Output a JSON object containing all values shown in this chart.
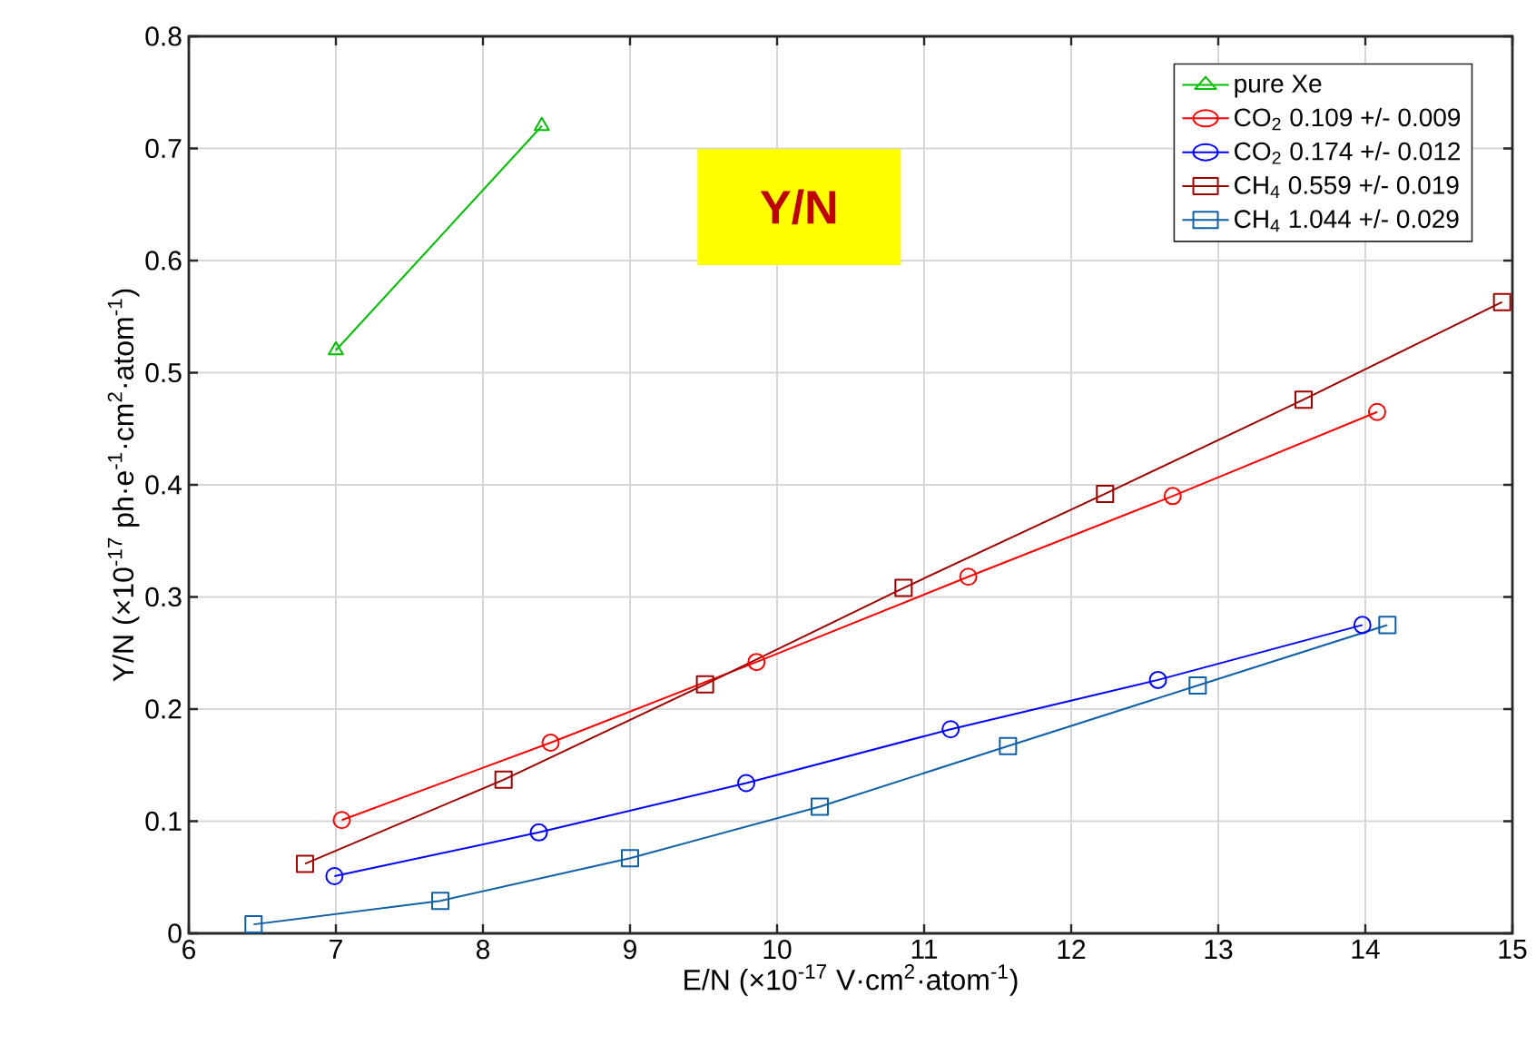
{
  "chart_data": {
    "type": "line",
    "xlabel": "E/N (×10$^{-17}$ V·cm$^{2}$·atom$^{-1}$)",
    "ylabel": "Y/N (×10$^{-17}$ ph·e$^{-1}$·cm$^{2}$·atom$^{-1}$)",
    "annotations": [
      "Y/N"
    ],
    "xlim": [
      6,
      15
    ],
    "xticks": [
      6,
      7,
      8,
      9,
      10,
      11,
      12,
      13,
      14,
      15
    ],
    "ylim": [
      0,
      0.8
    ],
    "yticks": [
      0,
      0.1,
      0.2,
      0.3,
      0.4,
      0.5,
      0.6,
      0.7,
      0.8
    ],
    "grid": true,
    "legend": "top right",
    "line_style": "solid",
    "series": [
      {
        "name": "pure Xe",
        "color": "#00c000",
        "marker": "triangle",
        "x": [
          7.0,
          8.4
        ],
        "values": [
          0.52,
          0.72
        ]
      },
      {
        "name": "CO$_{2}$ 0.109 +/- 0.009",
        "color": "#ff0000",
        "marker": "circle",
        "x": [
          7.04,
          8.46,
          9.86,
          11.3,
          12.69,
          14.08
        ],
        "values": [
          0.101,
          0.17,
          0.242,
          0.318,
          0.39,
          0.465
        ]
      },
      {
        "name": "CO$_{2}$ 0.174 +/- 0.012",
        "color": "#0000ff",
        "marker": "circle",
        "x": [
          6.99,
          8.38,
          9.79,
          11.18,
          12.59,
          13.98
        ],
        "values": [
          0.051,
          0.09,
          0.134,
          0.182,
          0.226,
          0.275
        ]
      },
      {
        "name": "CH$_{4}$ 0.559 +/- 0.019",
        "color": "#a00000",
        "marker": "square",
        "x": [
          6.79,
          8.14,
          9.51,
          10.86,
          12.23,
          13.58,
          14.93
        ],
        "values": [
          0.062,
          0.137,
          0.222,
          0.308,
          0.392,
          0.476,
          0.563
        ]
      },
      {
        "name": "CH$_{4}$ 1.044 +/- 0.029",
        "color": "#1060a8",
        "marker": "square",
        "x": [
          6.44,
          7.71,
          9.0,
          10.29,
          11.57,
          12.86,
          14.15
        ],
        "values": [
          0.008,
          0.029,
          0.067,
          0.113,
          0.167,
          0.221,
          0.275
        ]
      }
    ]
  }
}
